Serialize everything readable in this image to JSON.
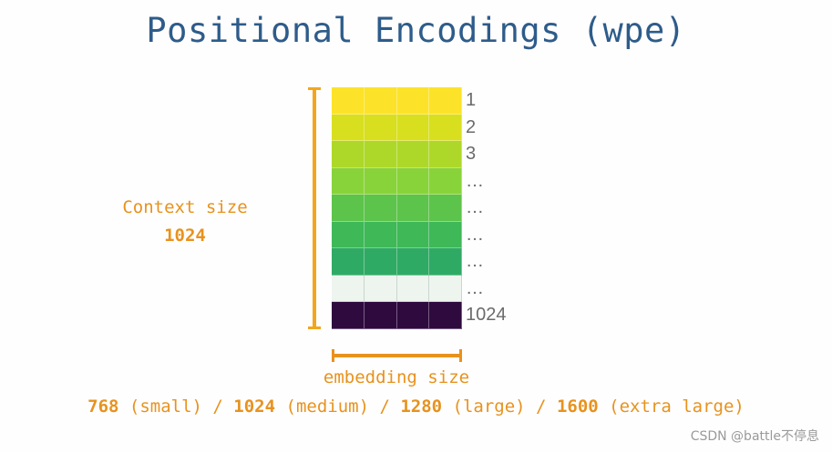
{
  "title": "Positional Encodings (wpe)",
  "context": {
    "label": "Context size",
    "value": "1024"
  },
  "embedding": {
    "label": "embedding size"
  },
  "sizes": {
    "small_value": "768",
    "small_label": " (small) / ",
    "medium_value": "1024",
    "medium_label": " (medium) / ",
    "large_value": "1280",
    "large_label": " (large) / ",
    "xl_value": "1600",
    "xl_label": " (extra large)"
  },
  "rows": [
    {
      "label": "1",
      "color": "#fce32a"
    },
    {
      "label": "2",
      "color": "#d8df1e"
    },
    {
      "label": "3",
      "color": "#aed829"
    },
    {
      "label": "…",
      "color": "#88d33a"
    },
    {
      "label": "…",
      "color": "#5cc44a"
    },
    {
      "label": "…",
      "color": "#3fb858"
    },
    {
      "label": "…",
      "color": "#2faa64"
    },
    {
      "label": "…",
      "color": "#edf5ee"
    },
    {
      "label": "1024",
      "color": "#2f0a3f"
    }
  ],
  "columns": 4,
  "colors": {
    "title": "#2e5c8a",
    "accent": "#e8921e",
    "bracket": "#f3a61b"
  },
  "watermark": "CSDN @battle不停息"
}
